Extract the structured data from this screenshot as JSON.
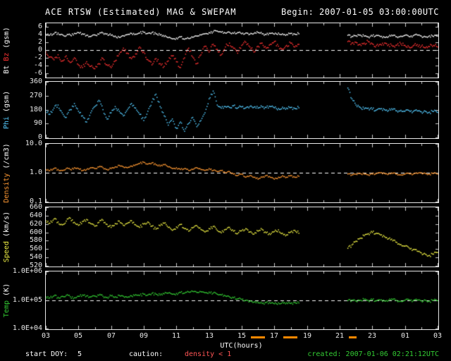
{
  "header": {
    "title": "ACE RTSW (Estimated) MAG & SWEPAM",
    "begin": "Begin: 2007-01-05 03:00:00UTC"
  },
  "footer": {
    "start_label": "start DOY:",
    "start_value": "5",
    "caution_label": "caution:",
    "caution_value": "density < 1",
    "created": "created: 2007-01-06 02:21:12UTC"
  },
  "xaxis": {
    "label": "UTC(hours)",
    "min": 3,
    "max": 27,
    "tick_hours": [
      3,
      5,
      7,
      9,
      11,
      13,
      15,
      17,
      19,
      21,
      23,
      25,
      27
    ],
    "tick_labels": [
      "03",
      "05",
      "07",
      "09",
      "11",
      "13",
      "15",
      "17",
      "19",
      "21",
      "23",
      "01",
      "03"
    ],
    "minor_step": 1
  },
  "caution_intervals": [
    [
      14.7,
      18.4
    ],
    [
      21.25,
      22.05
    ]
  ],
  "colors": {
    "background": "#000000",
    "frame": "#e8e8e8",
    "bt": "#ffffff",
    "bz": "#ff3333",
    "phi": "#55ccff",
    "density": "#ff9933",
    "speed": "#eeee44",
    "temp": "#33cc33",
    "caution": "#ff8800",
    "created_text": "#33cc33",
    "caution_text": "#ff5555",
    "text": "#ffffff"
  },
  "chart_data": {
    "type": "scatter",
    "title": "ACE RTSW (Estimated) MAG & SWEPAM",
    "x_label": "UTC(hours)",
    "x_hours": [
      3,
      3.25,
      3.5,
      3.75,
      4,
      4.25,
      4.5,
      4.75,
      5,
      5.25,
      5.5,
      5.75,
      6,
      6.25,
      6.5,
      6.75,
      7,
      7.25,
      7.5,
      7.75,
      8,
      8.25,
      8.5,
      8.75,
      9,
      9.25,
      9.5,
      9.75,
      10,
      10.25,
      10.5,
      10.75,
      11,
      11.25,
      11.5,
      11.75,
      12,
      12.25,
      12.5,
      12.75,
      13,
      13.25,
      13.5,
      13.75,
      14,
      14.25,
      14.5,
      14.75,
      15,
      15.25,
      15.5,
      15.75,
      16,
      16.25,
      16.5,
      16.75,
      17,
      17.25,
      17.5,
      17.75,
      18,
      18.25,
      18.5,
      21.5,
      21.75,
      22,
      22.25,
      22.5,
      22.75,
      23,
      23.25,
      23.5,
      23.75,
      24,
      24.25,
      24.5,
      24.75,
      25,
      25.25,
      25.5,
      25.75,
      26,
      26.25,
      26.5,
      26.75,
      27
    ],
    "panels": [
      {
        "name": "mag",
        "scale": "linear",
        "min": -6.9,
        "max": 6.9,
        "dashed_at": 0,
        "ticks": {
          "values": [
            6,
            4,
            2,
            0,
            -2,
            -4,
            -6
          ],
          "labels": [
            "6",
            "4",
            "2",
            "0",
            "-2",
            "-4",
            "-6"
          ]
        },
        "ylabel_parts": [
          {
            "text": "Bt",
            "color": "#ffffff"
          },
          {
            "text": "Bz",
            "color": "#ff3333"
          },
          {
            "text": "(gsm)",
            "color": "#ffffff"
          }
        ],
        "series": [
          {
            "name": "Bt",
            "color": "#ffffff",
            "jmode": "add",
            "jitter": 0.3,
            "values": [
              4.1,
              3.9,
              4.2,
              4.4,
              4,
              3.7,
              3.9,
              4.3,
              4.5,
              4.2,
              3.8,
              3.5,
              3.9,
              4.1,
              4.4,
              4.2,
              3.8,
              3.6,
              3.3,
              3.7,
              4,
              4.3,
              4.1,
              4.4,
              4.6,
              4.3,
              4.5,
              4.2,
              3.9,
              3.5,
              3.2,
              2.9,
              3.1,
              3.4,
              2.8,
              3,
              3.3,
              3.6,
              3.9,
              4.2,
              4.5,
              4.7,
              4.9,
              4.6,
              4.4,
              4.6,
              4.3,
              4.5,
              4.2,
              4.4,
              4.1,
              4.3,
              4.5,
              4.2,
              4,
              4.3,
              4.1,
              4.4,
              4.2,
              4,
              4.3,
              4.1,
              4.2,
              3.8,
              3.5,
              3.7,
              3.9,
              3.6,
              3.4,
              3.6,
              3.8,
              3.5,
              3.3,
              3.5,
              3.7,
              3.4,
              3.6,
              3.8,
              3.5,
              3.7,
              3.9,
              3.6,
              3.4,
              3.7,
              3.5,
              3.6
            ]
          },
          {
            "name": "Bz",
            "color": "#ff3333",
            "jmode": "add",
            "jitter": 0.5,
            "values": [
              -0.5,
              -1.8,
              -2.5,
              -1.2,
              -2.8,
              -1.5,
              -3.2,
              -2,
              -3.8,
              -4.5,
              -3,
              -4.2,
              -4.8,
              -3.5,
              -2.2,
              -3.8,
              -4.5,
              -2.8,
              -1,
              0.5,
              -0.8,
              -2.2,
              -1,
              0.8,
              -0.5,
              -2.5,
              -3.8,
              -2.2,
              -3.5,
              -4.2,
              -2.8,
              -1.5,
              -3,
              -4.5,
              -2,
              0.5,
              -1.8,
              -3.5,
              -1.2,
              1,
              -0.5,
              1.5,
              0.2,
              -1.2,
              0.8,
              1.8,
              0.5,
              -0.8,
              1.2,
              2,
              0.8,
              -0.5,
              1,
              1.8,
              0.5,
              1.5,
              2.2,
              1,
              0.2,
              1.2,
              1.8,
              0.8,
              1.5,
              2.2,
              1.8,
              2,
              1.5,
              1.8,
              2.2,
              1.6,
              1.2,
              1.5,
              1.8,
              1.4,
              1,
              1.3,
              1.6,
              1.2,
              0.8,
              1.1,
              1.4,
              1,
              0.6,
              0.9,
              1.2,
              0.8
            ]
          }
        ]
      },
      {
        "name": "phi",
        "scale": "linear",
        "min": 0,
        "max": 360,
        "dashed_at": null,
        "ticks": {
          "values": [
            360,
            270,
            180,
            90,
            0
          ],
          "labels": [
            "360",
            "270",
            "180",
            "90",
            "0"
          ]
        },
        "ylabel_parts": [
          {
            "text": "Phi",
            "color": "#55ccff"
          },
          {
            "text": "(gsm)",
            "color": "#ffffff"
          }
        ],
        "series": [
          {
            "name": "Phi",
            "color": "#55ccff",
            "jmode": "add",
            "jitter": 10,
            "values": [
              175,
              150,
              190,
              210,
              160,
              130,
              180,
              220,
              170,
              140,
              100,
              160,
              200,
              240,
              180,
              120,
              160,
              200,
              170,
              140,
              180,
              220,
              190,
              150,
              110,
              170,
              230,
              280,
              200,
              140,
              80,
              120,
              60,
              100,
              40,
              90,
              130,
              70,
              110,
              160,
              250,
              300,
              210,
              190,
              200,
              195,
              205,
              190,
              198,
              192,
              200,
              196,
              190,
              198,
              194,
              200,
              192,
              188,
              196,
              190,
              194,
              188,
              192,
              320,
              250,
              210,
              195,
              185,
              190,
              182,
              178,
              185,
              180,
              175,
              180,
              172,
              176,
              170,
              174,
              168,
              172,
              166,
              170,
              164,
              168,
              162
            ]
          }
        ]
      },
      {
        "name": "density",
        "scale": "log",
        "min": 0.1,
        "max": 10,
        "dashed_at": 1,
        "ticks": {
          "values": [
            10,
            1,
            0.1
          ],
          "labels": [
            "10.0",
            "1.0",
            "0.1"
          ]
        },
        "ylabel_parts": [
          {
            "text": "Density",
            "color": "#ff9933"
          },
          {
            "text": "(/cm3)",
            "color": "#ffffff"
          }
        ],
        "series": [
          {
            "name": "Density",
            "color": "#ff9933",
            "jmode": "mul",
            "jitter": 0.07,
            "values": [
              1.3,
              1.2,
              1.4,
              1.3,
              1.2,
              1.4,
              1.3,
              1.5,
              1.4,
              1.2,
              1.3,
              1.5,
              1.4,
              1.6,
              1.5,
              1.3,
              1.4,
              1.6,
              1.8,
              1.6,
              1.5,
              1.7,
              1.9,
              2.1,
              2.3,
              2,
              2.2,
              1.9,
              1.7,
              1.9,
              1.6,
              1.4,
              1.5,
              1.3,
              1.4,
              1.2,
              1.3,
              1.5,
              1.3,
              1.2,
              1.4,
              1.2,
              1.1,
              1.2,
              1,
              1.1,
              0.9,
              0.8,
              0.9,
              0.7,
              0.8,
              0.7,
              0.6,
              0.7,
              0.8,
              0.7,
              0.6,
              0.7,
              0.8,
              0.7,
              0.8,
              0.7,
              0.75,
              0.9,
              0.85,
              0.9,
              0.95,
              0.9,
              0.85,
              0.9,
              0.95,
              1,
              0.95,
              0.9,
              0.95,
              0.9,
              0.85,
              0.9,
              0.95,
              0.9,
              0.95,
              1,
              0.95,
              0.9,
              0.95,
              0.9
            ]
          }
        ]
      },
      {
        "name": "speed",
        "scale": "linear",
        "min": 520,
        "max": 660,
        "dashed_at": null,
        "ticks": {
          "values": [
            660,
            640,
            620,
            600,
            580,
            560,
            540,
            520
          ],
          "labels": [
            "660",
            "640",
            "620",
            "600",
            "580",
            "560",
            "540",
            "520"
          ]
        },
        "ylabel_parts": [
          {
            "text": "Speed",
            "color": "#eeee44"
          },
          {
            "text": "(km/s)",
            "color": "#ffffff"
          }
        ],
        "series": [
          {
            "name": "Speed",
            "color": "#eeee44",
            "jmode": "add",
            "jitter": 3.5,
            "values": [
              628,
              622,
              632,
              625,
              618,
              627,
              634,
              624,
              617,
              626,
              631,
              621,
              615,
              624,
              629,
              619,
              612,
              621,
              627,
              617,
              622,
              628,
              618,
              612,
              620,
              625,
              615,
              608,
              616,
              622,
              612,
              605,
              613,
              619,
              609,
              603,
              611,
              616,
              607,
              601,
              609,
              614,
              605,
              599,
              607,
              612,
              603,
              597,
              604,
              609,
              601,
              596,
              603,
              607,
              599,
              595,
              602,
              606,
              598,
              594,
              601,
              605,
              598,
              562,
              570,
              579,
              586,
              592,
              597,
              600,
              598,
              594,
              590,
              585,
              580,
              576,
              571,
              567,
              563,
              559,
              555,
              551,
              548,
              545,
              548,
              552
            ]
          }
        ]
      },
      {
        "name": "temp",
        "scale": "log",
        "min": 10000,
        "max": 1000000,
        "dashed_at": 100000,
        "ticks": {
          "values": [
            1000000,
            100000,
            10000
          ],
          "labels": [
            "1.0E+06",
            "1.0E+05",
            "1.0E+04"
          ]
        },
        "ylabel_parts": [
          {
            "text": "Temp",
            "color": "#33cc33"
          },
          {
            "text": "(K)",
            "color": "#ffffff"
          }
        ],
        "series": [
          {
            "name": "Temp",
            "color": "#33cc33",
            "jmode": "mul",
            "jitter": 0.1,
            "values": [
              130000,
              120000,
              140000,
              125000,
              135000,
              145000,
              130000,
              120000,
              135000,
              150000,
              140000,
              128000,
              138000,
              148000,
              135000,
              125000,
              140000,
              130000,
              145000,
              135000,
              125000,
              140000,
              155000,
              145000,
              160000,
              150000,
              170000,
              160000,
              150000,
              165000,
              175000,
              160000,
              170000,
              185000,
              175000,
              190000,
              200000,
              185000,
              195000,
              180000,
              190000,
              175000,
              160000,
              150000,
              140000,
              130000,
              120000,
              110000,
              105000,
              98000,
              90000,
              85000,
              80000,
              76000,
              82000,
              78000,
              74000,
              80000,
              85000,
              80000,
              76000,
              82000,
              79000,
              95000,
              100000,
              92000,
              98000,
              105000,
              96000,
              102000,
              95000,
              100000,
              93000,
              98000,
              104000,
              96000,
              92000,
              98000,
              103000,
              95000,
              100000,
              94000,
              99000,
              92000,
              97000,
              95000
            ]
          }
        ]
      }
    ]
  }
}
